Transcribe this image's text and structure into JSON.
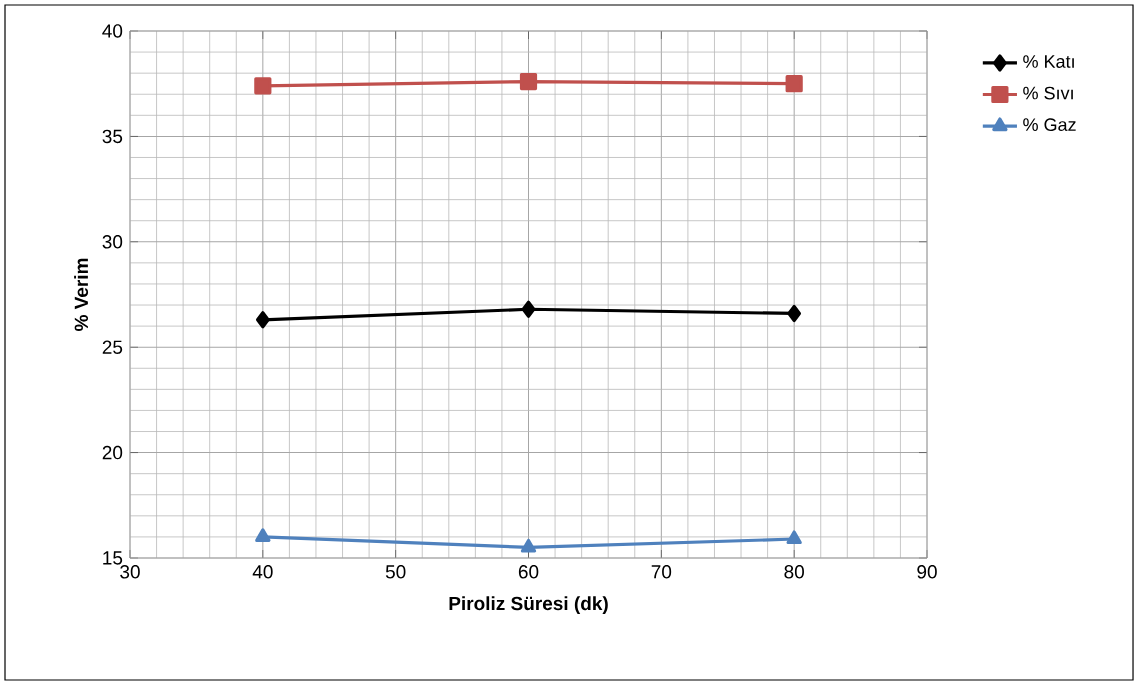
{
  "chart_data": {
    "type": "line",
    "xlabel": "Piroliz Süresi (dk)",
    "ylabel": "% Verim",
    "x": [
      40,
      60,
      80
    ],
    "series": [
      {
        "name": "% Katı",
        "color": "#000000",
        "marker": "diamond",
        "values": [
          26.3,
          26.8,
          26.6
        ]
      },
      {
        "name": "% Sıvı",
        "color": "#c0504d",
        "marker": "square",
        "values": [
          37.4,
          37.6,
          37.5
        ]
      },
      {
        "name": "% Gaz",
        "color": "#4f81bd",
        "marker": "triangle",
        "values": [
          16.0,
          15.5,
          15.9
        ]
      }
    ],
    "xlim": [
      30,
      90
    ],
    "xticks": [
      30,
      40,
      50,
      60,
      70,
      80,
      90
    ],
    "ylim": [
      15,
      40
    ],
    "yticks": [
      15,
      20,
      25,
      30,
      35,
      40
    ],
    "grid": true,
    "legend": "right",
    "line_style": "solid"
  }
}
